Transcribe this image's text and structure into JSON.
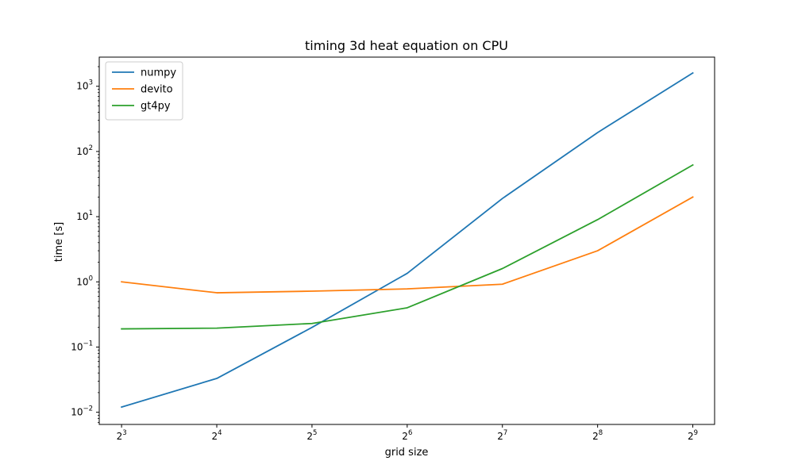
{
  "chart_data": {
    "type": "line",
    "title": "timing 3d heat equation on CPU",
    "xlabel": "grid size",
    "ylabel": "time [s]",
    "xscale": "log2",
    "yscale": "log10",
    "x": [
      8,
      16,
      32,
      64,
      128,
      256,
      512
    ],
    "xlim": [
      6.8,
      600
    ],
    "ylim": [
      0.0065,
      2800
    ],
    "x_ticks": [
      {
        "value": 8,
        "base": "2",
        "exp": "3"
      },
      {
        "value": 16,
        "base": "2",
        "exp": "4"
      },
      {
        "value": 32,
        "base": "2",
        "exp": "5"
      },
      {
        "value": 64,
        "base": "2",
        "exp": "6"
      },
      {
        "value": 128,
        "base": "2",
        "exp": "7"
      },
      {
        "value": 256,
        "base": "2",
        "exp": "8"
      },
      {
        "value": 512,
        "base": "2",
        "exp": "9"
      }
    ],
    "y_ticks": [
      {
        "value": 0.01,
        "base": "10",
        "exp": "−2"
      },
      {
        "value": 0.1,
        "base": "10",
        "exp": "−1"
      },
      {
        "value": 1,
        "base": "10",
        "exp": "0"
      },
      {
        "value": 10,
        "base": "10",
        "exp": "1"
      },
      {
        "value": 100,
        "base": "10",
        "exp": "2"
      },
      {
        "value": 1000,
        "base": "10",
        "exp": "3"
      }
    ],
    "legend": "upper-left",
    "grid": false,
    "series": [
      {
        "name": "numpy",
        "color": "#1f77b4",
        "values": [
          0.012,
          0.033,
          0.2,
          1.35,
          19,
          195,
          1600
        ]
      },
      {
        "name": "devito",
        "color": "#ff7f0e",
        "values": [
          1.0,
          0.68,
          0.72,
          0.78,
          0.92,
          3.0,
          20
        ]
      },
      {
        "name": "gt4py",
        "color": "#2ca02c",
        "values": [
          0.19,
          0.195,
          0.23,
          0.4,
          1.6,
          9.0,
          62
        ]
      }
    ]
  }
}
